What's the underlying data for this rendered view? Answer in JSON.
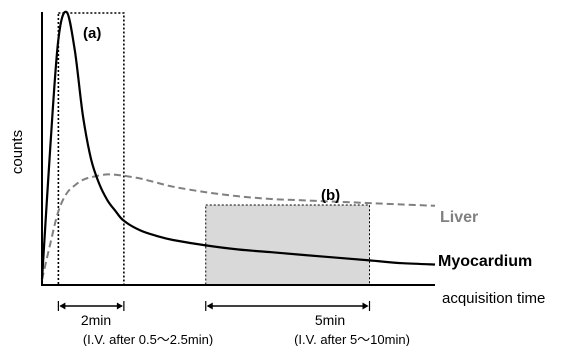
{
  "chart_data": {
    "type": "line",
    "x_unit": "min",
    "ylabel": "counts",
    "xlabel": "acquisition time",
    "series": [
      {
        "name": "Myocardium",
        "color": "#000000",
        "style": "solid",
        "x": [
          0,
          0.25,
          0.5,
          0.75,
          1.0,
          1.25,
          1.5,
          1.75,
          2.0,
          2.25,
          2.5,
          3,
          3.5,
          4,
          5,
          6,
          7,
          8,
          9,
          10,
          11,
          12
        ],
        "y": [
          0.02,
          0.5,
          0.9,
          1.0,
          0.86,
          0.62,
          0.46,
          0.37,
          0.31,
          0.27,
          0.235,
          0.2,
          0.18,
          0.165,
          0.145,
          0.13,
          0.12,
          0.11,
          0.1,
          0.09,
          0.08,
          0.075
        ]
      },
      {
        "name": "Liver",
        "color": "#808080",
        "style": "dashed",
        "x": [
          0,
          0.25,
          0.5,
          0.75,
          1.0,
          1.25,
          1.5,
          2.0,
          2.5,
          3,
          3.5,
          4,
          5,
          6,
          7,
          8,
          9,
          10,
          11,
          12
        ],
        "y": [
          0.02,
          0.15,
          0.27,
          0.335,
          0.365,
          0.385,
          0.395,
          0.405,
          0.4,
          0.39,
          0.375,
          0.36,
          0.34,
          0.325,
          0.315,
          0.31,
          0.305,
          0.3,
          0.295,
          0.29
        ]
      }
    ],
    "regions": [
      {
        "label": "(a)",
        "x_start": 0.5,
        "x_end": 2.5,
        "style": "dotted-box"
      },
      {
        "label": "(b)",
        "x_start": 5,
        "x_end": 10,
        "style": "shaded-box",
        "fill": "#d9d9d9"
      }
    ],
    "spans": [
      {
        "duration": "2min",
        "note": "(I.V. after 0.5〜2.5min)",
        "x_start": 0.5,
        "x_end": 2.5
      },
      {
        "duration": "5min",
        "note": "(I.V. after 5〜10min)",
        "x_start": 5,
        "x_end": 10
      }
    ],
    "xlim": [
      0,
      12
    ],
    "ylim": [
      0,
      1.0
    ],
    "grid": false,
    "legend": "inline-right"
  }
}
